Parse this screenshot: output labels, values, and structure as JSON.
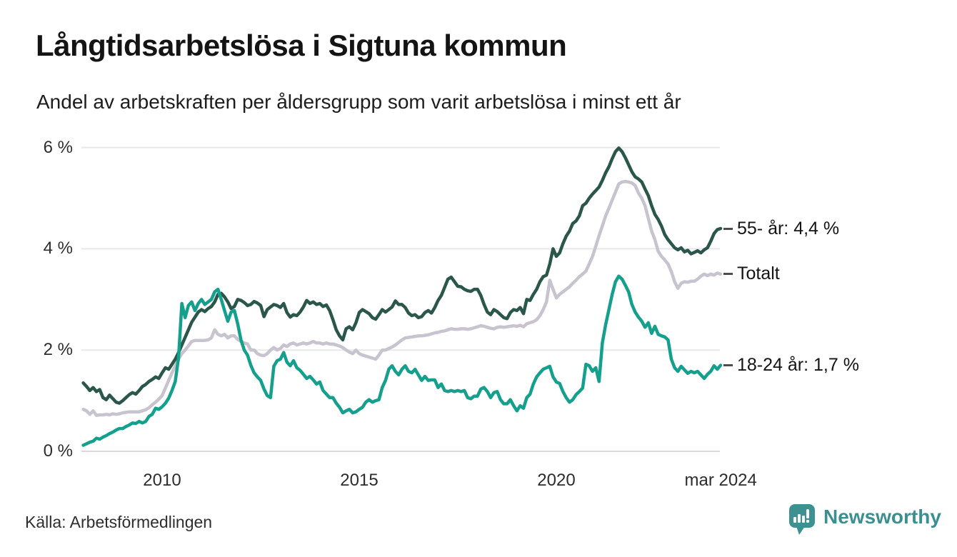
{
  "chart_data": {
    "type": "line",
    "title": "Långtidsarbetslösa i Sigtuna kommun",
    "subtitle": "Andel av arbetskraften per åldersgrupp som varit arbetslösa i minst ett år",
    "source": "Källa: Arbetsförmedlingen",
    "grid": true,
    "legend_position": "line-end-labels-right",
    "x_axis": {
      "range": [
        2008.0,
        2024.17
      ],
      "ticks": [
        {
          "label": "2010",
          "year": 2010
        },
        {
          "label": "2015",
          "year": 2015
        },
        {
          "label": "2020",
          "year": 2020
        },
        {
          "label": "mar 2024",
          "year": 2024.17
        }
      ]
    },
    "y_axis": {
      "unit": "%",
      "range": [
        0,
        6.2
      ],
      "ticks": [
        {
          "label": "0 %",
          "value": 0
        },
        {
          "label": "2 %",
          "value": 2
        },
        {
          "label": "4 %",
          "value": 4
        },
        {
          "label": "6 %",
          "value": 6
        }
      ]
    },
    "colors": {
      "grid": "#e8e8ec",
      "axis": "#d9d9de",
      "tick_text": "#2d2d2d",
      "label_text": "#141414",
      "connector": "#4d4d4d"
    },
    "draw_order": [
      "totalt",
      "55-ar",
      "18-24-ar"
    ],
    "series": [
      {
        "id": "55-ar",
        "name": "55- år",
        "end_label": "55- år: 4,4 %",
        "end_value_text": "4,4 %",
        "color": "#2a574a",
        "start_year": 2008,
        "interval_months": 1,
        "values": [
          1.35,
          1.28,
          1.2,
          1.26,
          1.18,
          1.22,
          1.06,
          1.02,
          1.11,
          1.04,
          0.97,
          0.95,
          1.0,
          1.06,
          1.12,
          1.16,
          1.13,
          1.2,
          1.28,
          1.32,
          1.38,
          1.42,
          1.47,
          1.44,
          1.55,
          1.65,
          1.62,
          1.72,
          1.82,
          1.95,
          2.1,
          2.25,
          2.4,
          2.55,
          2.65,
          2.75,
          2.8,
          2.76,
          2.82,
          2.86,
          2.95,
          3.1,
          3.12,
          3.05,
          2.95,
          2.82,
          2.86,
          3.0,
          2.98,
          2.94,
          2.88,
          2.9,
          2.96,
          2.93,
          2.88,
          2.66,
          2.8,
          2.85,
          2.9,
          2.88,
          2.84,
          2.92,
          2.74,
          2.65,
          2.7,
          2.68,
          2.75,
          2.85,
          2.98,
          2.92,
          2.95,
          2.9,
          2.92,
          2.86,
          2.89,
          2.78,
          2.6,
          2.4,
          2.28,
          2.2,
          2.42,
          2.46,
          2.4,
          2.54,
          2.74,
          2.8,
          2.76,
          2.72,
          2.64,
          2.61,
          2.7,
          2.8,
          2.75,
          2.8,
          2.85,
          2.97,
          2.9,
          2.9,
          2.84,
          2.73,
          2.68,
          2.7,
          2.64,
          2.66,
          2.74,
          2.78,
          2.73,
          2.84,
          2.98,
          3.08,
          3.24,
          3.4,
          3.44,
          3.35,
          3.26,
          3.25,
          3.2,
          3.17,
          3.16,
          3.2,
          3.2,
          3.08,
          2.9,
          2.75,
          2.7,
          2.8,
          2.76,
          2.7,
          2.64,
          2.62,
          2.74,
          2.8,
          2.78,
          2.84,
          2.72,
          3.0,
          2.98,
          3.1,
          3.2,
          3.35,
          3.45,
          3.48,
          3.7,
          4.0,
          3.85,
          3.92,
          4.1,
          4.25,
          4.35,
          4.5,
          4.55,
          4.65,
          4.85,
          4.9,
          5.0,
          5.08,
          5.15,
          5.22,
          5.35,
          5.5,
          5.62,
          5.78,
          5.92,
          5.99,
          5.92,
          5.8,
          5.66,
          5.52,
          5.42,
          5.38,
          5.32,
          5.18,
          5.05,
          4.85,
          4.68,
          4.58,
          4.45,
          4.28,
          4.18,
          4.1,
          4.02,
          3.98,
          4.02,
          3.94,
          3.97,
          3.9,
          3.93,
          3.96,
          3.92,
          3.98,
          4.02,
          4.15,
          4.3,
          4.38,
          4.4
        ]
      },
      {
        "id": "totalt",
        "name": "Totalt",
        "end_label": "Totalt",
        "end_value_text": "",
        "color": "#c7c4cf",
        "start_year": 2008,
        "interval_months": 1,
        "values": [
          0.83,
          0.8,
          0.73,
          0.8,
          0.71,
          0.72,
          0.72,
          0.73,
          0.72,
          0.74,
          0.73,
          0.74,
          0.76,
          0.77,
          0.78,
          0.78,
          0.78,
          0.78,
          0.8,
          0.82,
          0.86,
          0.92,
          0.97,
          1.03,
          1.1,
          1.25,
          1.4,
          1.55,
          1.69,
          1.82,
          1.93,
          2.0,
          2.08,
          2.17,
          2.19,
          2.19,
          2.19,
          2.19,
          2.2,
          2.24,
          2.4,
          2.31,
          2.28,
          2.31,
          2.24,
          2.28,
          2.28,
          2.21,
          2.17,
          2.14,
          2.12,
          2.0,
          2.0,
          1.93,
          1.9,
          1.89,
          1.93,
          2.0,
          2.05,
          2.0,
          2.03,
          2.1,
          2.07,
          2.12,
          2.14,
          2.1,
          2.12,
          2.14,
          2.12,
          2.14,
          2.17,
          2.14,
          2.14,
          2.12,
          2.14,
          2.12,
          2.12,
          2.1,
          2.08,
          2.05,
          2.0,
          1.96,
          1.93,
          2.0,
          1.93,
          1.9,
          1.88,
          1.86,
          1.84,
          1.82,
          1.9,
          2.0,
          2.0,
          2.03,
          2.06,
          2.1,
          2.15,
          2.2,
          2.24,
          2.25,
          2.26,
          2.27,
          2.28,
          2.28,
          2.29,
          2.3,
          2.32,
          2.34,
          2.35,
          2.37,
          2.38,
          2.4,
          2.42,
          2.41,
          2.41,
          2.42,
          2.42,
          2.41,
          2.42,
          2.44,
          2.46,
          2.48,
          2.47,
          2.45,
          2.43,
          2.42,
          2.45,
          2.46,
          2.45,
          2.46,
          2.47,
          2.48,
          2.47,
          2.49,
          2.46,
          2.52,
          2.54,
          2.56,
          2.6,
          2.68,
          2.8,
          2.95,
          3.38,
          3.2,
          3.03,
          3.1,
          3.15,
          3.2,
          3.25,
          3.32,
          3.38,
          3.45,
          3.5,
          3.56,
          3.7,
          3.85,
          4.05,
          4.26,
          4.45,
          4.65,
          4.8,
          4.96,
          5.12,
          5.28,
          5.32,
          5.33,
          5.32,
          5.3,
          5.25,
          5.1,
          5.0,
          4.85,
          4.6,
          4.35,
          4.18,
          3.95,
          3.85,
          3.78,
          3.7,
          3.55,
          3.35,
          3.22,
          3.32,
          3.35,
          3.34,
          3.36,
          3.36,
          3.4,
          3.46,
          3.5,
          3.47,
          3.5,
          3.48,
          3.52,
          3.5
        ]
      },
      {
        "id": "18-24-ar",
        "name": "18-24 år",
        "end_label": "18-24 år: 1,7 %",
        "end_value_text": "1,7 %",
        "color": "#14a08c",
        "start_year": 2008,
        "interval_months": 1,
        "values": [
          0.12,
          0.15,
          0.18,
          0.2,
          0.26,
          0.24,
          0.28,
          0.31,
          0.35,
          0.38,
          0.42,
          0.45,
          0.45,
          0.49,
          0.52,
          0.56,
          0.55,
          0.59,
          0.56,
          0.59,
          0.69,
          0.73,
          0.85,
          0.83,
          0.88,
          0.95,
          1.05,
          1.2,
          1.38,
          1.85,
          2.92,
          2.64,
          2.88,
          2.95,
          2.78,
          2.92,
          3.0,
          2.9,
          2.95,
          3.0,
          3.15,
          3.2,
          3.0,
          2.78,
          2.57,
          2.75,
          2.78,
          2.52,
          2.2,
          2.0,
          1.9,
          1.7,
          1.55,
          1.47,
          1.4,
          1.23,
          1.1,
          1.06,
          1.68,
          1.79,
          1.82,
          1.95,
          1.76,
          1.69,
          1.79,
          1.65,
          1.6,
          1.52,
          1.44,
          1.48,
          1.41,
          1.33,
          1.37,
          1.2,
          1.13,
          1.06,
          1.06,
          0.95,
          0.87,
          0.76,
          0.8,
          0.83,
          0.76,
          0.78,
          0.83,
          0.87,
          0.97,
          1.02,
          0.97,
          1.0,
          1.02,
          1.26,
          1.4,
          1.62,
          1.69,
          1.58,
          1.51,
          1.62,
          1.69,
          1.58,
          1.55,
          1.62,
          1.51,
          1.4,
          1.48,
          1.4,
          1.41,
          1.41,
          1.26,
          1.33,
          1.2,
          1.18,
          1.2,
          1.18,
          1.2,
          1.18,
          1.2,
          1.06,
          1.04,
          1.09,
          1.09,
          1.23,
          1.26,
          1.18,
          1.06,
          1.16,
          1.18,
          1.02,
          0.94,
          0.94,
          1.02,
          0.9,
          0.8,
          0.9,
          0.85,
          1.06,
          1.13,
          1.33,
          1.47,
          1.55,
          1.62,
          1.65,
          1.68,
          1.47,
          1.37,
          1.34,
          1.18,
          1.06,
          0.97,
          1.02,
          1.12,
          1.18,
          1.25,
          1.72,
          1.69,
          1.58,
          1.65,
          1.38,
          2.14,
          2.5,
          2.8,
          3.1,
          3.35,
          3.46,
          3.4,
          3.28,
          3.15,
          2.9,
          2.75,
          2.65,
          2.57,
          2.45,
          2.54,
          2.33,
          2.47,
          2.31,
          2.28,
          2.26,
          2.2,
          1.82,
          1.65,
          1.58,
          1.68,
          1.61,
          1.54,
          1.58,
          1.55,
          1.58,
          1.51,
          1.44,
          1.52,
          1.58,
          1.69,
          1.62,
          1.7
        ]
      }
    ]
  },
  "footer": {
    "brand": "Newsworthy",
    "brand_color": "#3c8f90"
  }
}
